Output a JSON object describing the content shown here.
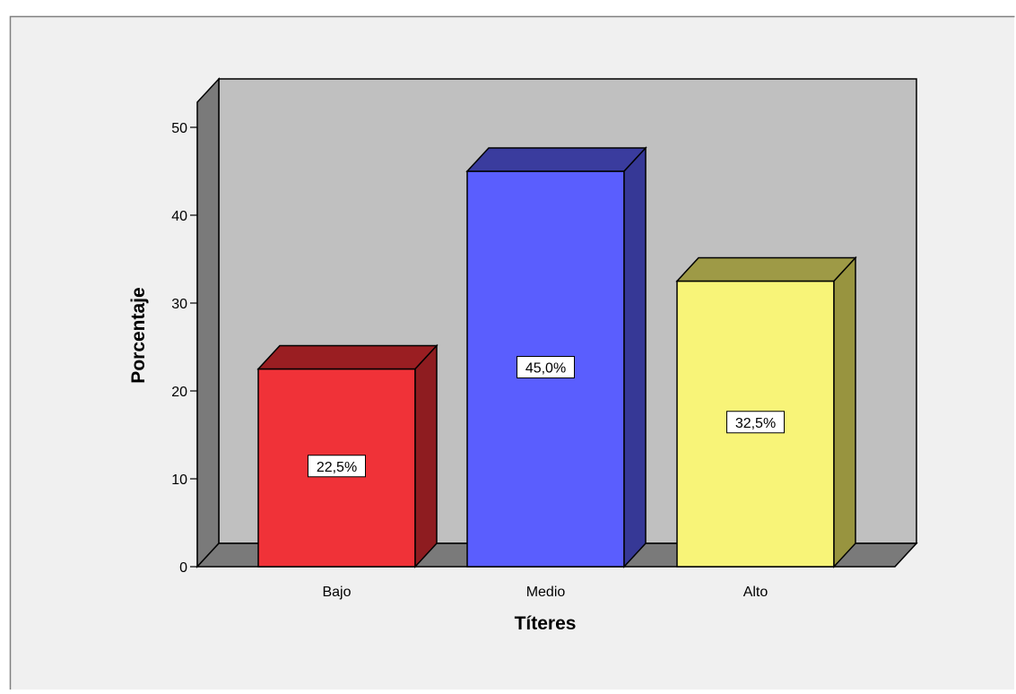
{
  "chart_data": {
    "type": "bar",
    "style": "3d",
    "categories": [
      "Bajo",
      "Medio",
      "Alto"
    ],
    "values": [
      22.5,
      45.0,
      32.5
    ],
    "data_labels": [
      "22,5%",
      "45,0%",
      "32,5%"
    ],
    "title": "",
    "xlabel": "Títeres",
    "ylabel": "Porcentaje",
    "ylim": [
      0,
      50
    ],
    "yticks": [
      0,
      10,
      20,
      30,
      40,
      50
    ],
    "grid": false,
    "legend": "none",
    "colors": {
      "bars": [
        "#f03238",
        "#5a5efe",
        "#f8f478"
      ],
      "bar_tops": [
        "#9a1e22",
        "#3a3c9e",
        "#9e9a46"
      ],
      "bar_sides": [
        "#8e1c20",
        "#363896",
        "#98943f"
      ],
      "back_wall": "#c0c0c0",
      "side_wall": "#7a7a7a",
      "floor": "#7a7a7a",
      "background": "#f0f0f0"
    }
  }
}
